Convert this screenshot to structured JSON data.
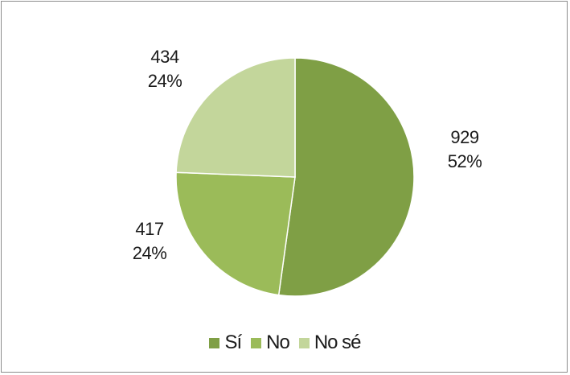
{
  "chart_data": {
    "type": "pie",
    "title": "",
    "slices": [
      {
        "label": "Sí",
        "legend_label": "Sí",
        "value": 929,
        "percent_label": "52%",
        "color": "#7f9f45"
      },
      {
        "label": "No",
        "legend_label": "No",
        "value": 417,
        "percent_label": "24%",
        "color": "#9bbb59"
      },
      {
        "label": "No sé",
        "legend_label": "No sé",
        "value": 434,
        "percent_label": "24%",
        "color": "#c3d69b"
      }
    ],
    "legend_position": "bottom"
  }
}
